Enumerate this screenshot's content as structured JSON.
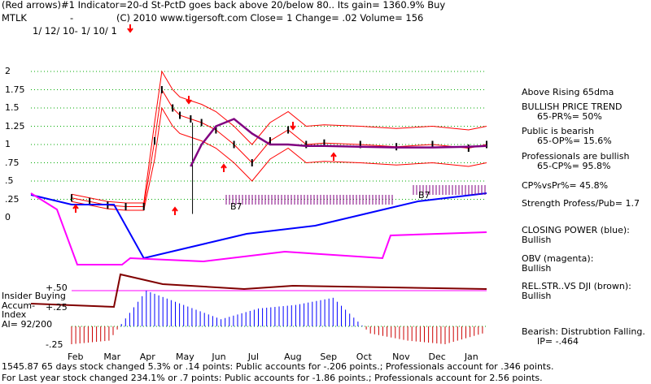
{
  "header": {
    "line1": "(Red arrows)#1 Indicator=20-d St-PctD goes back above 20/below 80.. Its gain= 1360.9% Buy",
    "ticker": "MTLK",
    "dash": "-",
    "line2": "(C) 2010 www.tigersoft.com     Close=  1   Change= .02 Volume= 156",
    "date_range": "1/ 12/ 10- 1/ 10/ 1"
  },
  "right_panel": {
    "above_ma": "Above Rising 65dma",
    "trend_title": "BULLISH PRICE TREND",
    "trend_value": "65-PR%= 50%",
    "public_title": "Public is bearish",
    "public_value": "65-OP%= 15.6%",
    "pro_title": "Professionals are bullish",
    "pro_value": "65-CP%= 95.8%",
    "cp_vs_pr": "CP%vsPr%=  45.8%",
    "strength": "Strength Profess/Pub= 1.7",
    "closing_power_title": "CLOSING POWER (blue):",
    "closing_power_value": "Bullish",
    "obv_title": "OBV (magenta):",
    "obv_value": "Bullish",
    "relstr_title": "REL.STR..VS DJI (brown):",
    "relstr_value": "Bullish",
    "bearish_title": "Bearish: Distrubtion Falling.",
    "ip_value": "IP= -.464"
  },
  "indicator_labels": {
    "insider_buying": "Insider Buying",
    "accum": "Accum-",
    "index": "Index",
    "ai": "AI= 92/200",
    "plus50": "+.50",
    "plus25": "+.25",
    "minus25": "-.25",
    "b7_left": "B7",
    "b7_right": "B7"
  },
  "footer": {
    "line1": "1545.87 65 days stock changed  5.3% or  .14 points:  Public accounts for -.206 points.;  Professionals account for  .346 points.",
    "line2": "For Last year stock changed  234.1% or  .7 points:  Public accounts for -1.86 points.;  Professionals account for  2.56 points."
  },
  "colors": {
    "price_bars": "#000000",
    "closing_power": "#0000ff",
    "obv": "#ff00ff",
    "rel_str": "#800000",
    "ma_bands": "#ff0000",
    "ma65": "#800080",
    "accum_pos": "#0000ff",
    "accum_neg": "#cc0000",
    "grid": "#00aa00",
    "arrows": "#ff0000"
  },
  "chart_data": {
    "type": "line",
    "title": "",
    "ylim": [
      0,
      2
    ],
    "y_ticks": [
      "2",
      "1.75",
      "1.5",
      "1.25",
      "1",
      ".75",
      ".5",
      ".25",
      "0"
    ],
    "x_ticks": [
      "Feb",
      "Mar",
      "Apr",
      "May",
      "Jun",
      "Jul",
      "Aug",
      "Sep",
      "Oct",
      "Nov",
      "Dec",
      "Jan"
    ],
    "grid": true,
    "x": [
      0,
      0.5,
      1,
      1.5,
      2,
      2.3,
      2.5,
      2.8,
      3,
      3.3,
      3.6,
      4,
      4.5,
      5,
      5.5,
      6,
      6.5,
      7,
      8,
      9,
      10,
      11,
      11.5
    ],
    "series": [
      {
        "name": "Price",
        "values": [
          0.27,
          0.22,
          0.17,
          0.15,
          0.15,
          1.05,
          1.75,
          1.5,
          1.4,
          1.35,
          1.3,
          1.2,
          1.0,
          0.75,
          1.05,
          1.2,
          1.0,
          1.02,
          1.0,
          0.97,
          1.0,
          0.95,
          1.0
        ]
      },
      {
        "name": "65-day MA",
        "values": [
          null,
          null,
          null,
          null,
          null,
          null,
          null,
          null,
          null,
          0.7,
          1.0,
          1.25,
          1.35,
          1.15,
          1.0,
          1.0,
          0.98,
          0.98,
          0.97,
          0.96,
          0.96,
          0.97,
          0.98
        ]
      }
    ],
    "indicators": {
      "closing_power": [
        0.0,
        0.1,
        0.2,
        0.3,
        0.35,
        0.4,
        0.5,
        0.6,
        0.7,
        0.75,
        0.8
      ],
      "accum_index": [
        -0.25,
        -0.2,
        0.5,
        0.3,
        0.1,
        0.25,
        0.3,
        0.4,
        -0.1,
        -0.2,
        -0.25,
        -0.1
      ]
    }
  }
}
